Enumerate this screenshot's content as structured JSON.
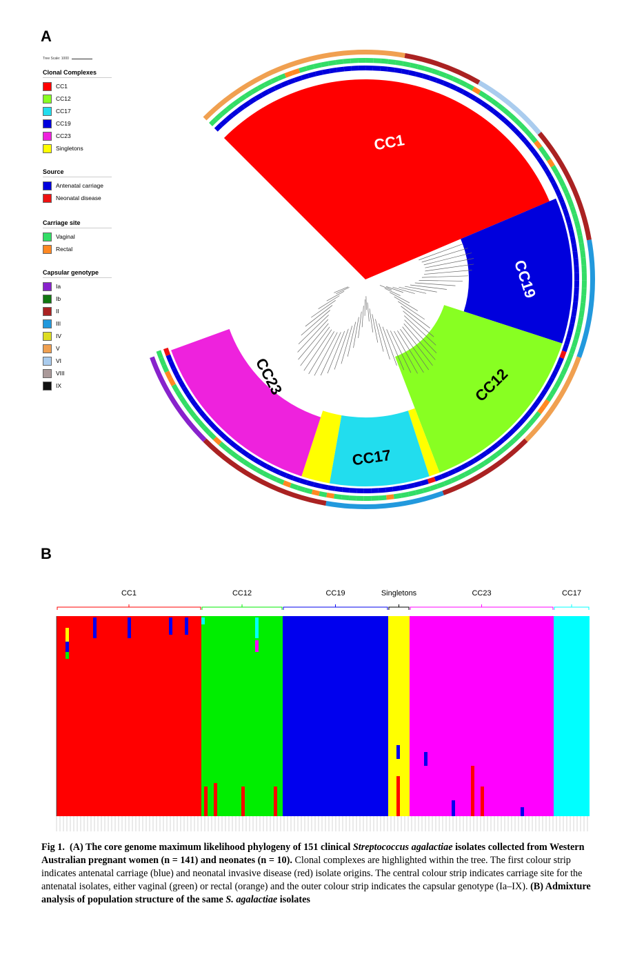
{
  "panels": {
    "a": "A",
    "b": "B"
  },
  "legend": {
    "scale": "Tree Scale: 1000",
    "sections": [
      {
        "title": "Clonal Complexes",
        "items": [
          {
            "label": "CC1",
            "color": "#ff0000"
          },
          {
            "label": "CC12",
            "color": "#88ff22"
          },
          {
            "label": "CC17",
            "color": "#22ddee"
          },
          {
            "label": "CC19",
            "color": "#0000dd"
          },
          {
            "label": "CC23",
            "color": "#ee22dd"
          },
          {
            "label": "Singletons",
            "color": "#ffff00"
          }
        ]
      },
      {
        "title": "Source",
        "items": [
          {
            "label": "Antenatal carriage",
            "color": "#0000dd"
          },
          {
            "label": "Neonatal disease",
            "color": "#ee1111"
          }
        ]
      },
      {
        "title": "Carriage site",
        "items": [
          {
            "label": "Vaginal",
            "color": "#33dd66"
          },
          {
            "label": "Rectal",
            "color": "#ff8822"
          }
        ]
      },
      {
        "title": "Capsular genotype",
        "items": [
          {
            "label": "Ia",
            "color": "#8822cc"
          },
          {
            "label": "Ib",
            "color": "#117711"
          },
          {
            "label": "II",
            "color": "#aa2222"
          },
          {
            "label": "III",
            "color": "#2299dd"
          },
          {
            "label": "IV",
            "color": "#dddd22"
          },
          {
            "label": "V",
            "color": "#f0a050"
          },
          {
            "label": "VI",
            "color": "#aaccee"
          },
          {
            "label": "VIII",
            "color": "#aa9999"
          },
          {
            "label": "IX",
            "color": "#111111"
          }
        ]
      }
    ]
  },
  "tree": {
    "clades": [
      {
        "label": "CC1",
        "color": "#ff0000",
        "start": -135,
        "end": -23
      },
      {
        "label": "CC19",
        "color": "#0000dd",
        "start": -23,
        "end": 18
      },
      {
        "label": "CC12",
        "color": "#88ff22",
        "start": 18,
        "end": 69
      },
      {
        "label": "Singletons",
        "color": "#ffff00",
        "start": 69,
        "end": 72
      },
      {
        "label": "CC17",
        "color": "#22ddee",
        "start": 72,
        "end": 100
      },
      {
        "label": "Singletons",
        "color": "#ffff00",
        "start": 100,
        "end": 108
      },
      {
        "label": "CC23",
        "color": "#ee22dd",
        "start": 108,
        "end": 160
      }
    ],
    "clade_labels": [
      "CC1",
      "CC19",
      "CC12",
      "CC17",
      "CC23"
    ]
  },
  "admixture": {
    "groups": [
      {
        "label": "CC1",
        "color": "#ff0000"
      },
      {
        "label": "CC12",
        "color": "#00ee00"
      },
      {
        "label": "CC19",
        "color": "#0000ee"
      },
      {
        "label": "Singletons",
        "color": "#ffff00"
      },
      {
        "label": "CC23",
        "color": "#ff00ff"
      },
      {
        "label": "CC17",
        "color": "#00ffff"
      }
    ]
  },
  "caption": {
    "fig": "Fig 1.",
    "part1": "(A) The core genome maximum likelihood phylogeny of 151 clinical ",
    "species": "Streptococcus agalactiae",
    "part2": " isolates collected from Western Australian pregnant women (n = 141) and neonates (n = 10).",
    "body": " Clonal complexes are highlighted within the tree. The first colour strip indicates antenatal carriage (blue) and neonatal invasive disease (red) isolate origins. The central colour strip indicates carriage site for the antenatal isolates, either vaginal (green) or rectal (orange) and the outer colour strip indicates the capsular genotype (Ia–IX). ",
    "part3": "(B) Admixture analysis of population structure of the same ",
    "species2": "S. agalactiae",
    "part4": " isolates"
  }
}
